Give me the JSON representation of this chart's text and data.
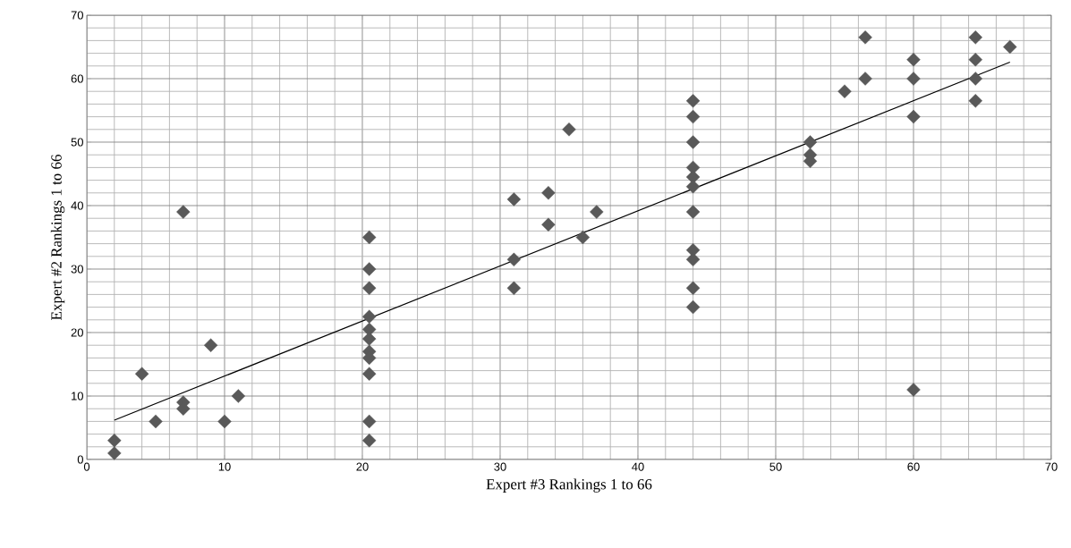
{
  "chart_data": {
    "type": "scatter",
    "xlabel": "Expert #3 Rankings 1 to 66",
    "ylabel": "Expert #2 Rankings 1 to 66",
    "xlim": [
      0,
      70
    ],
    "ylim": [
      0,
      70
    ],
    "xticks": [
      0,
      10,
      20,
      30,
      40,
      50,
      60,
      70
    ],
    "yticks": [
      0,
      10,
      20,
      30,
      40,
      50,
      60,
      70
    ],
    "grid": true,
    "series": [
      {
        "marker": "diamond",
        "color": "#595959",
        "x": [
          2,
          2,
          4,
          5,
          7,
          7,
          7,
          9,
          10,
          11,
          20.5,
          20.5,
          20.5,
          20.5,
          20.5,
          20.5,
          20.5,
          20.5,
          20.5,
          20.5,
          20.5,
          31,
          31,
          31,
          33.5,
          33.5,
          35,
          36,
          37,
          44,
          44,
          44,
          44,
          44,
          44,
          44,
          44,
          44,
          44,
          44,
          52.5,
          52.5,
          52.5,
          55,
          56.5,
          56.5,
          60,
          60,
          60,
          60,
          64.5,
          64.5,
          64.5,
          64.5,
          67
        ],
        "values": [
          3,
          1,
          13.5,
          6,
          39,
          9,
          8,
          18,
          6,
          10,
          35,
          30,
          27,
          22.5,
          20.5,
          19,
          17,
          16,
          13.5,
          6,
          3,
          41,
          31.5,
          27,
          42,
          37,
          52,
          35,
          39,
          56.5,
          54,
          50,
          46,
          44.5,
          43,
          39,
          33,
          31.5,
          27,
          24,
          50,
          48,
          47,
          58,
          66.5,
          60,
          63,
          60,
          54,
          11,
          66.5,
          63,
          60,
          56.5,
          65
        ]
      },
      {
        "type": "line",
        "marker": "none",
        "line_style": "solid",
        "color": "#000000",
        "x": [
          2,
          67
        ],
        "values": [
          6.2,
          62.6
        ]
      }
    ]
  }
}
